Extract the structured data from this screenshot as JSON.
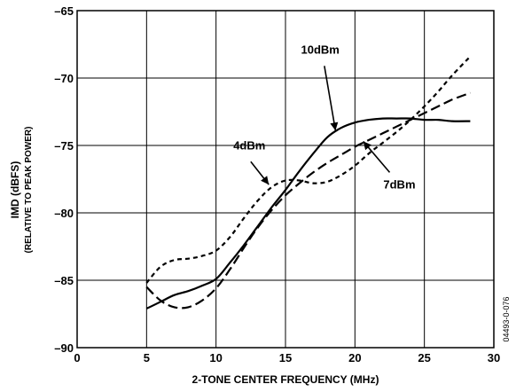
{
  "chart_data": {
    "type": "line",
    "xlabel": "2-TONE CENTER FREQUENCY (MHz)",
    "ylabel": "IMD (dBFS)",
    "ylabel_sub": "(RELATIVE TO PEAK POWER)",
    "xlim": [
      0,
      30
    ],
    "ylim": [
      -90,
      -65
    ],
    "x_ticks": [
      "0",
      "5",
      "10",
      "15",
      "20",
      "25",
      "30"
    ],
    "y_ticks": [
      "–90",
      "–85",
      "–80",
      "–75",
      "–70",
      "–65"
    ],
    "grid": true,
    "figure_id": "04493-0-076",
    "series": [
      {
        "name": "10dBm",
        "style": "solid",
        "points": [
          [
            5,
            -87.1
          ],
          [
            6,
            -86.6
          ],
          [
            7,
            -86.1
          ],
          [
            8,
            -85.8
          ],
          [
            9,
            -85.4
          ],
          [
            10,
            -84.9
          ],
          [
            11,
            -83.7
          ],
          [
            12,
            -82.4
          ],
          [
            13,
            -81.0
          ],
          [
            14,
            -79.6
          ],
          [
            15,
            -78.3
          ],
          [
            16,
            -76.9
          ],
          [
            17,
            -75.6
          ],
          [
            18,
            -74.4
          ],
          [
            19,
            -73.7
          ],
          [
            20,
            -73.3
          ],
          [
            21,
            -73.1
          ],
          [
            22,
            -73.0
          ],
          [
            23,
            -73.0
          ],
          [
            24,
            -73.0
          ],
          [
            25,
            -73.1
          ],
          [
            26,
            -73.1
          ],
          [
            27,
            -73.2
          ],
          [
            28.3,
            -73.2
          ]
        ]
      },
      {
        "name": "7dBm",
        "style": "dashed",
        "points": [
          [
            5,
            -85.5
          ],
          [
            6,
            -86.5
          ],
          [
            7,
            -87.0
          ],
          [
            8,
            -87.0
          ],
          [
            9,
            -86.5
          ],
          [
            10,
            -85.6
          ],
          [
            11,
            -84.2
          ],
          [
            12,
            -82.6
          ],
          [
            13,
            -81.1
          ],
          [
            14,
            -79.8
          ],
          [
            15,
            -78.7
          ],
          [
            16,
            -77.8
          ],
          [
            17,
            -77.0
          ],
          [
            18,
            -76.3
          ],
          [
            19,
            -75.7
          ],
          [
            20,
            -75.1
          ],
          [
            21,
            -74.6
          ],
          [
            22,
            -74.1
          ],
          [
            23,
            -73.6
          ],
          [
            24,
            -73.1
          ],
          [
            25,
            -72.6
          ],
          [
            26,
            -72.1
          ],
          [
            27,
            -71.6
          ],
          [
            28.3,
            -71.1
          ]
        ]
      },
      {
        "name": "4dBm",
        "style": "dotted",
        "points": [
          [
            5,
            -85.2
          ],
          [
            6,
            -84.0
          ],
          [
            7,
            -83.5
          ],
          [
            8,
            -83.4
          ],
          [
            9,
            -83.2
          ],
          [
            10,
            -82.8
          ],
          [
            11,
            -81.8
          ],
          [
            12,
            -80.4
          ],
          [
            13,
            -79.1
          ],
          [
            14,
            -78.1
          ],
          [
            15,
            -77.6
          ],
          [
            16,
            -77.6
          ],
          [
            17,
            -77.8
          ],
          [
            18,
            -77.7
          ],
          [
            19,
            -77.2
          ],
          [
            20,
            -76.5
          ],
          [
            21,
            -75.6
          ],
          [
            22,
            -74.8
          ],
          [
            23,
            -74.0
          ],
          [
            24,
            -73.1
          ],
          [
            25,
            -72.1
          ],
          [
            26,
            -71.0
          ],
          [
            27,
            -69.8
          ],
          [
            28.3,
            -68.4
          ]
        ]
      }
    ],
    "annotations": [
      {
        "text": "10dBm",
        "series": "10dBm"
      },
      {
        "text": "7dBm",
        "series": "7dBm"
      },
      {
        "text": "4dBm",
        "series": "4dBm"
      }
    ]
  }
}
